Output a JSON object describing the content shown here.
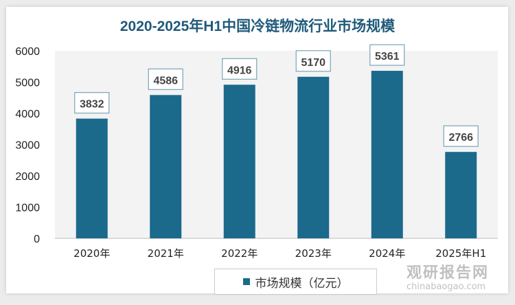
{
  "chart_data": {
    "type": "bar",
    "title": "2020-2025年H1中国冷链物流行业市场规模",
    "categories": [
      "2020年",
      "2021年",
      "2022年",
      "2023年",
      "2024年",
      "2025年H1"
    ],
    "series": [
      {
        "name": "市场规模（亿元）",
        "values": [
          3832,
          4586,
          4916,
          5170,
          5361,
          2766
        ]
      }
    ],
    "ylim": [
      0,
      6000
    ],
    "yticks": [
      0,
      1000,
      2000,
      3000,
      4000,
      5000,
      6000
    ],
    "legend": "bottom",
    "bar_color": "#1b6a8c"
  },
  "watermark": {
    "name": "观研报告网",
    "url": "chinabaogao.com"
  }
}
